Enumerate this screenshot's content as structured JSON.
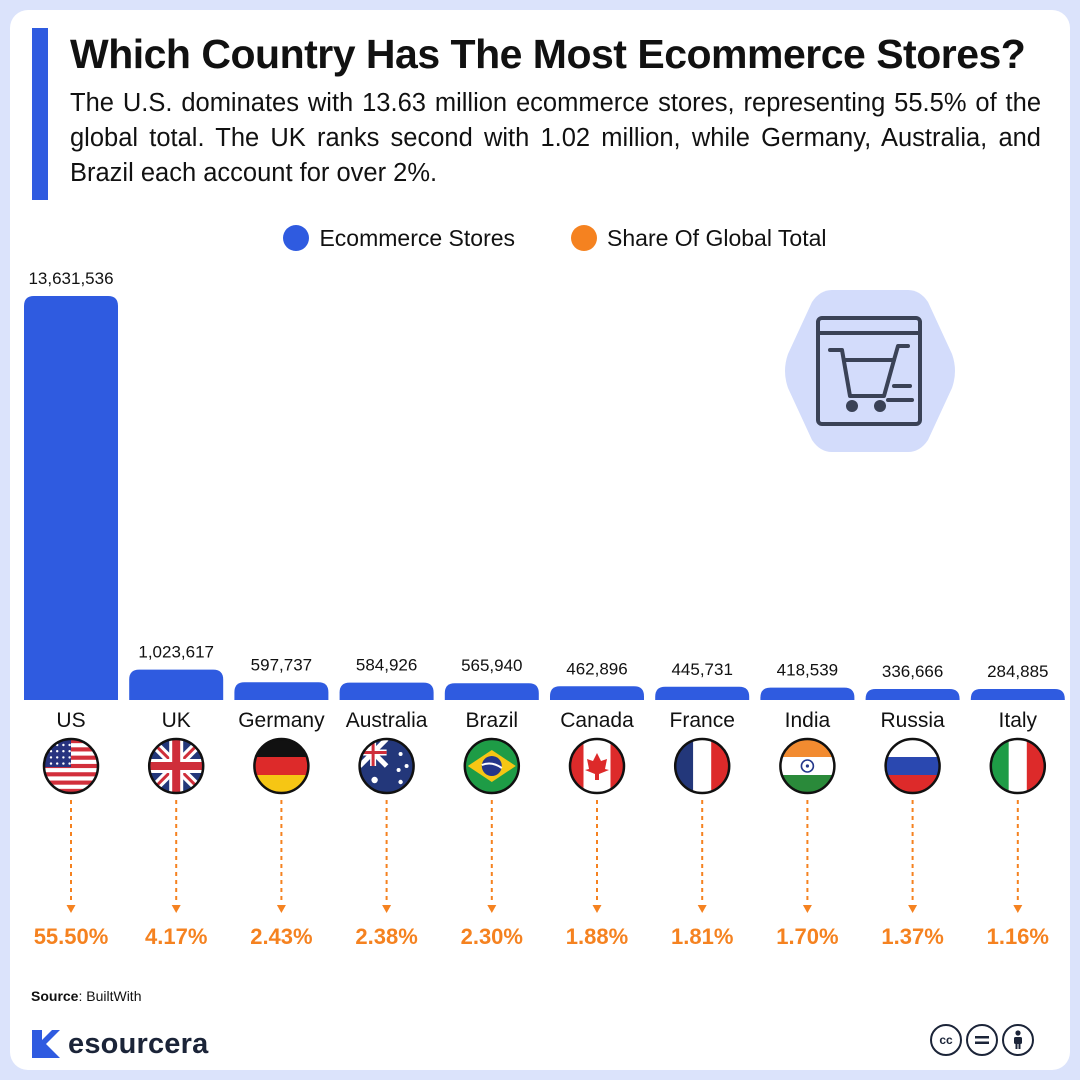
{
  "colors": {
    "accent_blue": "#2f5be0",
    "accent_orange": "#f58220",
    "background": "#dbe3fb",
    "badge_bg": "#d3dcfb",
    "text": "#111111"
  },
  "chart_data": {
    "type": "bar",
    "title": "Which Country Has The Most Ecommerce Stores?",
    "subtitle": "The U.S. dominates with 13.63 million ecommerce stores, representing 55.5% of the global total. The UK ranks second with 1.02 million, while Germany, Australia, and Brazil each account for over 2%.",
    "legend_placement": "top-center",
    "grid": false,
    "ylim": [
      0,
      13631536
    ],
    "categories": [
      "US",
      "UK",
      "Germany",
      "Australia",
      "Brazil",
      "Canada",
      "France",
      "India",
      "Russia",
      "Italy"
    ],
    "series": [
      {
        "name": "Ecommerce Stores",
        "color": "#2f5be0",
        "values": [
          13631536,
          1023617,
          597737,
          584926,
          565940,
          462896,
          445731,
          418539,
          336666,
          284885
        ],
        "labels": [
          "13,631,536",
          "1,023,617",
          "597,737",
          "584,926",
          "565,940",
          "462,896",
          "445,731",
          "418,539",
          "336,666",
          "284,885"
        ]
      },
      {
        "name": "Share Of Global Total",
        "color": "#f58220",
        "values": [
          55.5,
          4.17,
          2.43,
          2.38,
          2.3,
          1.88,
          1.81,
          1.7,
          1.37,
          1.16
        ],
        "labels": [
          "55.50%",
          "4.17%",
          "2.43%",
          "2.38%",
          "2.30%",
          "1.88%",
          "1.81%",
          "1.70%",
          "1.37%",
          "1.16%"
        ]
      }
    ],
    "flags": [
      "us-flag",
      "uk-flag",
      "germany-flag",
      "australia-flag",
      "brazil-flag",
      "canada-flag",
      "france-flag",
      "india-flag",
      "russia-flag",
      "italy-flag"
    ]
  },
  "icons": {
    "badge": "shopping-cart-icon",
    "brand_logo": "resourcera-logo-icon",
    "cc": [
      "cc-icon",
      "equals-icon",
      "person-icon"
    ]
  },
  "source": {
    "label": "Source",
    "text": ": BuiltWith"
  },
  "brand": {
    "name": "esourcera"
  },
  "cc_label": "cc"
}
